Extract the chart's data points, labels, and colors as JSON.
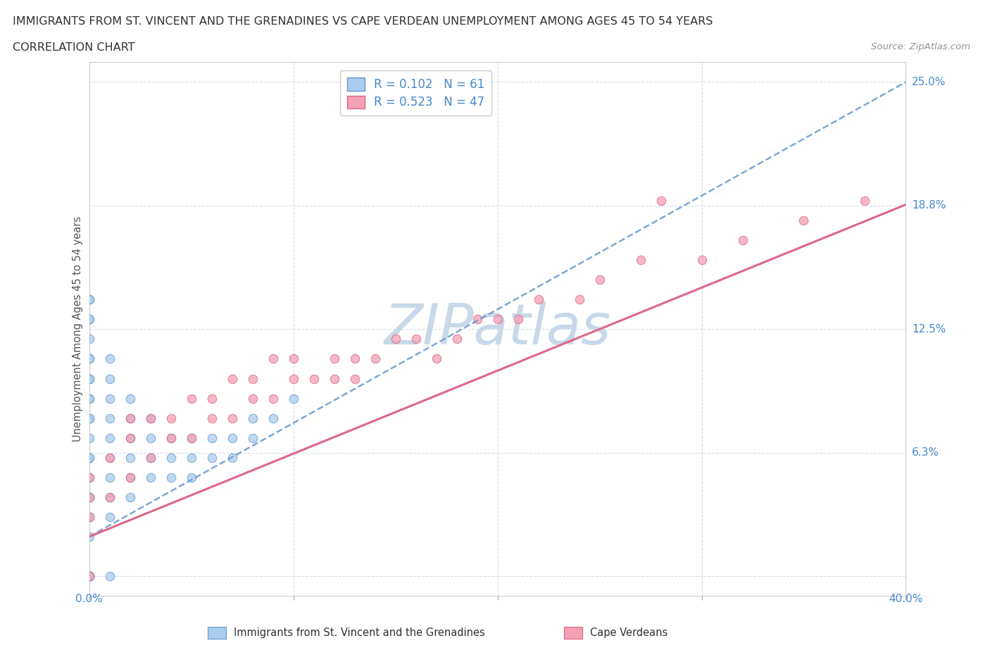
{
  "title_line1": "IMMIGRANTS FROM ST. VINCENT AND THE GRENADINES VS CAPE VERDEAN UNEMPLOYMENT AMONG AGES 45 TO 54 YEARS",
  "title_line2": "CORRELATION CHART",
  "source_text": "Source: ZipAtlas.com",
  "ylabel": "Unemployment Among Ages 45 to 54 years",
  "xlim": [
    0.0,
    0.4
  ],
  "ylim": [
    -0.01,
    0.26
  ],
  "ytick_vals": [
    0.0,
    0.0625,
    0.125,
    0.1875,
    0.25
  ],
  "ytick_labels": [
    "",
    "6.3%",
    "12.5%",
    "18.8%",
    "25.0%"
  ],
  "xtick_vals": [
    0.0,
    0.1,
    0.2,
    0.3,
    0.4
  ],
  "xtick_labels_show": {
    "0.0": "0.0%",
    "0.40": "40.0%"
  },
  "series1_color": "#aaccee",
  "series1_edge": "#6699cc",
  "series2_color": "#f4a0b5",
  "series2_edge": "#dd6688",
  "series1_label": "Immigrants from St. Vincent and the Grenadines",
  "series2_label": "Cape Verdeans",
  "line1_color": "#6699cc",
  "line1_style": "--",
  "line2_color": "#dd6688",
  "line2_style": "-",
  "legend_r1": "R = 0.102",
  "legend_n1": "N = 61",
  "legend_r2": "R = 0.523",
  "legend_n2": "N = 47",
  "watermark_text": "ZIPatlas",
  "watermark_color": "#c8d8ea",
  "grid_color": "#d0daea",
  "tick_label_color": "#4488cc",
  "title_color": "#303030",
  "source_color": "#909090",
  "series1_x": [
    0.0,
    0.0,
    0.0,
    0.0,
    0.0,
    0.0,
    0.0,
    0.0,
    0.0,
    0.0,
    0.0,
    0.0,
    0.0,
    0.0,
    0.0,
    0.0,
    0.0,
    0.0,
    0.0,
    0.0,
    0.0,
    0.0,
    0.0,
    0.0,
    0.0,
    0.0,
    0.0,
    0.01,
    0.01,
    0.01,
    0.01,
    0.01,
    0.01,
    0.01,
    0.01,
    0.01,
    0.01,
    0.02,
    0.02,
    0.02,
    0.02,
    0.02,
    0.02,
    0.03,
    0.03,
    0.03,
    0.03,
    0.04,
    0.04,
    0.04,
    0.05,
    0.05,
    0.05,
    0.06,
    0.06,
    0.07,
    0.07,
    0.08,
    0.08,
    0.09,
    0.1
  ],
  "series1_y": [
    0.0,
    0.0,
    0.0,
    0.0,
    0.0,
    0.0,
    0.02,
    0.03,
    0.04,
    0.05,
    0.06,
    0.07,
    0.08,
    0.09,
    0.1,
    0.1,
    0.11,
    0.12,
    0.13,
    0.14,
    0.14,
    0.13,
    0.04,
    0.06,
    0.08,
    0.09,
    0.11,
    0.0,
    0.03,
    0.04,
    0.05,
    0.06,
    0.07,
    0.08,
    0.09,
    0.1,
    0.11,
    0.04,
    0.05,
    0.06,
    0.07,
    0.08,
    0.09,
    0.05,
    0.06,
    0.07,
    0.08,
    0.05,
    0.06,
    0.07,
    0.05,
    0.06,
    0.07,
    0.06,
    0.07,
    0.06,
    0.07,
    0.07,
    0.08,
    0.08,
    0.09
  ],
  "series2_x": [
    0.0,
    0.0,
    0.0,
    0.0,
    0.01,
    0.01,
    0.02,
    0.02,
    0.02,
    0.03,
    0.03,
    0.04,
    0.04,
    0.05,
    0.05,
    0.06,
    0.06,
    0.07,
    0.07,
    0.08,
    0.08,
    0.09,
    0.09,
    0.1,
    0.1,
    0.11,
    0.12,
    0.12,
    0.13,
    0.13,
    0.14,
    0.15,
    0.16,
    0.17,
    0.18,
    0.19,
    0.2,
    0.21,
    0.22,
    0.24,
    0.25,
    0.27,
    0.28,
    0.3,
    0.32,
    0.35,
    0.38
  ],
  "series2_y": [
    0.0,
    0.03,
    0.04,
    0.05,
    0.04,
    0.06,
    0.05,
    0.07,
    0.08,
    0.06,
    0.08,
    0.07,
    0.08,
    0.07,
    0.09,
    0.08,
    0.09,
    0.08,
    0.1,
    0.09,
    0.1,
    0.09,
    0.11,
    0.1,
    0.11,
    0.1,
    0.1,
    0.11,
    0.1,
    0.11,
    0.11,
    0.12,
    0.12,
    0.11,
    0.12,
    0.13,
    0.13,
    0.13,
    0.14,
    0.14,
    0.15,
    0.16,
    0.19,
    0.16,
    0.17,
    0.18,
    0.19
  ],
  "line1_x": [
    0.0,
    0.4
  ],
  "line1_y": [
    0.02,
    0.25
  ],
  "line2_x": [
    0.0,
    0.4
  ],
  "line2_y": [
    0.02,
    0.188
  ]
}
